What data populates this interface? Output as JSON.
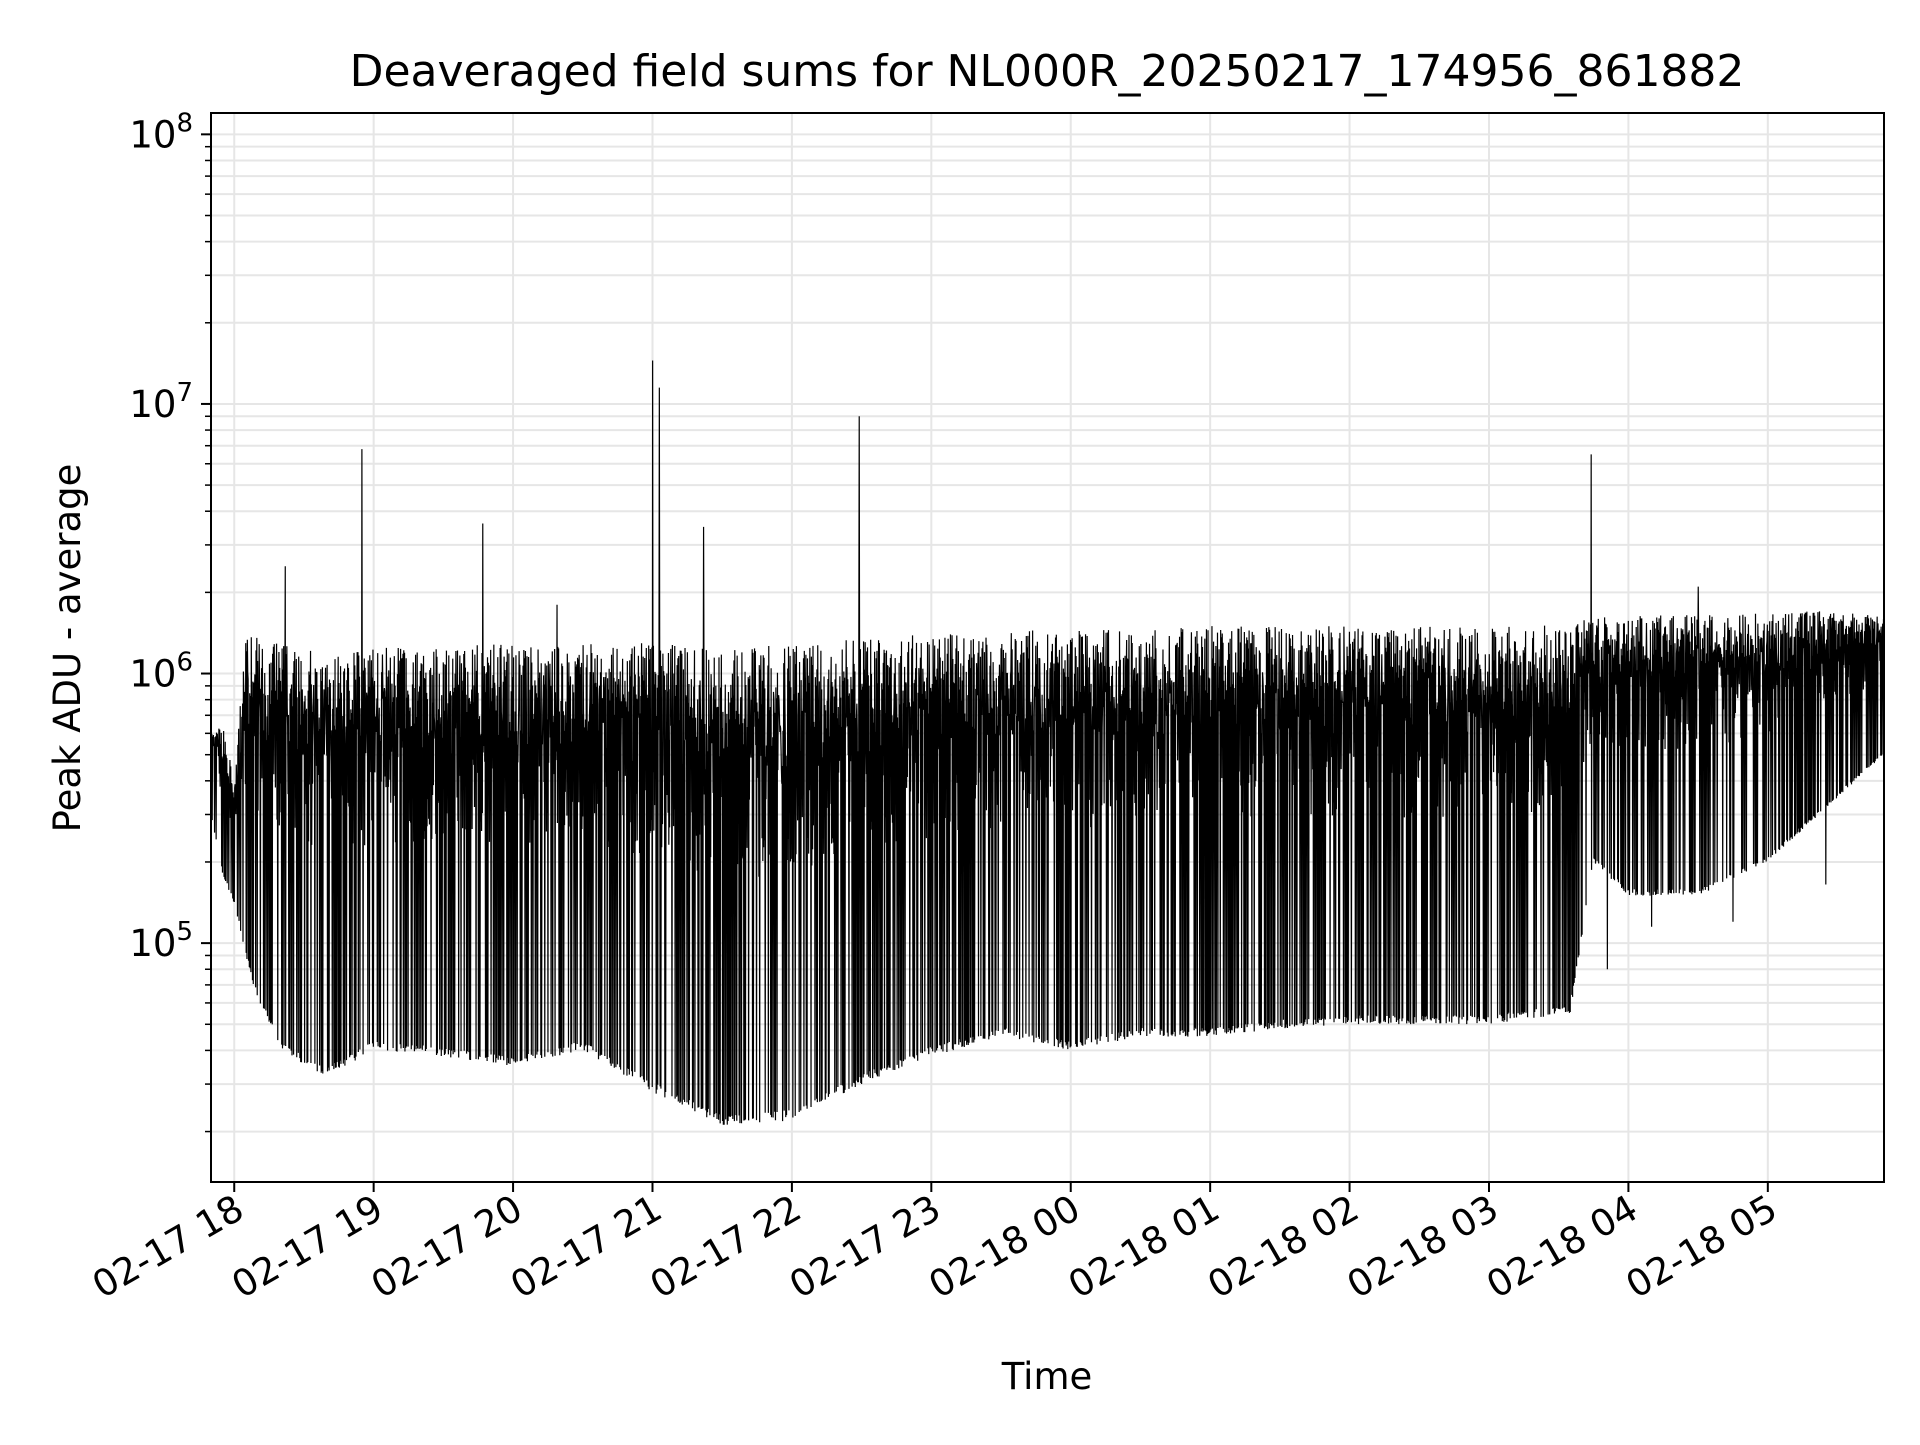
{
  "chart_data": {
    "type": "line",
    "title": "Deaveraged field sums for NL000R_20250217_174956_861882",
    "xlabel": "Time",
    "ylabel": "Peak ADU - average",
    "yscale": "log",
    "xlim": [
      "02-17 17:50",
      "02-18 05:50"
    ],
    "ylim": [
      13000,
      120000000
    ],
    "grid": true,
    "x_ticks": [
      {
        "time": "02-17 18:00",
        "label": "02-17 18"
      },
      {
        "time": "02-17 19:00",
        "label": "02-17 19"
      },
      {
        "time": "02-17 20:00",
        "label": "02-17 20"
      },
      {
        "time": "02-17 21:00",
        "label": "02-17 21"
      },
      {
        "time": "02-17 22:00",
        "label": "02-17 22"
      },
      {
        "time": "02-17 23:00",
        "label": "02-17 23"
      },
      {
        "time": "02-18 00:00",
        "label": "02-18 00"
      },
      {
        "time": "02-18 01:00",
        "label": "02-18 01"
      },
      {
        "time": "02-18 02:00",
        "label": "02-18 02"
      },
      {
        "time": "02-18 03:00",
        "label": "02-18 03"
      },
      {
        "time": "02-18 04:00",
        "label": "02-18 04"
      },
      {
        "time": "02-18 05:00",
        "label": "02-18 05"
      }
    ],
    "y_ticks": [
      {
        "value": 100000,
        "base": "10",
        "exp": "5"
      },
      {
        "value": 1000000,
        "base": "10",
        "exp": "6"
      },
      {
        "value": 10000000,
        "base": "10",
        "exp": "7"
      },
      {
        "value": 100000000,
        "base": "10",
        "exp": "8"
      }
    ],
    "line_color": "#000000",
    "grid_color": "#e6e6e6",
    "series": [
      {
        "envelope": [
          {
            "x": "02-17 17:50",
            "low": 300000,
            "high": 600000
          },
          {
            "x": "02-17 17:55",
            "low": 180000,
            "high": 650000
          },
          {
            "x": "02-17 18:00",
            "low": 140000,
            "high": 400000
          },
          {
            "x": "02-17 18:05",
            "low": 90000,
            "high": 1400000
          },
          {
            "x": "02-17 18:10",
            "low": 60000,
            "high": 1400000
          },
          {
            "x": "02-17 18:15",
            "low": 50000,
            "high": 1350000
          },
          {
            "x": "02-17 18:20",
            "low": 40000,
            "high": 1300000
          },
          {
            "x": "02-17 18:30",
            "low": 35000,
            "high": 1250000
          },
          {
            "x": "02-17 18:40",
            "low": 32000,
            "high": 1200000
          },
          {
            "x": "02-17 19:00",
            "low": 40000,
            "high": 1250000
          },
          {
            "x": "02-17 19:30",
            "low": 38000,
            "high": 1250000
          },
          {
            "x": "02-17 20:00",
            "low": 35000,
            "high": 1300000
          },
          {
            "x": "02-17 20:30",
            "low": 40000,
            "high": 1300000
          },
          {
            "x": "02-17 21:00",
            "low": 28000,
            "high": 1300000
          },
          {
            "x": "02-17 21:30",
            "low": 21000,
            "high": 1250000
          },
          {
            "x": "02-17 22:00",
            "low": 22000,
            "high": 1300000
          },
          {
            "x": "02-17 22:30",
            "low": 30000,
            "high": 1350000
          },
          {
            "x": "02-17 23:00",
            "low": 38000,
            "high": 1400000
          },
          {
            "x": "02-17 23:30",
            "low": 45000,
            "high": 1450000
          },
          {
            "x": "02-18 00:00",
            "low": 40000,
            "high": 1450000
          },
          {
            "x": "02-18 00:30",
            "low": 45000,
            "high": 1450000
          },
          {
            "x": "02-18 01:00",
            "low": 45000,
            "high": 1500000
          },
          {
            "x": "02-18 01:30",
            "low": 48000,
            "high": 1500000
          },
          {
            "x": "02-18 02:00",
            "low": 50000,
            "high": 1500000
          },
          {
            "x": "02-18 02:30",
            "low": 50000,
            "high": 1500000
          },
          {
            "x": "02-18 03:00",
            "low": 50000,
            "high": 1500000
          },
          {
            "x": "02-18 03:35",
            "low": 55000,
            "high": 1550000
          },
          {
            "x": "02-18 03:45",
            "low": 200000,
            "high": 1600000
          },
          {
            "x": "02-18 04:00",
            "low": 150000,
            "high": 1650000
          },
          {
            "x": "02-18 04:30",
            "low": 150000,
            "high": 1650000
          },
          {
            "x": "02-18 05:00",
            "low": 200000,
            "high": 1700000
          },
          {
            "x": "02-18 05:50",
            "low": 500000,
            "high": 1700000
          }
        ],
        "spikes": [
          {
            "x": "02-17 18:22",
            "value": 2500000
          },
          {
            "x": "02-17 18:55",
            "value": 6800000
          },
          {
            "x": "02-17 19:47",
            "value": 3600000
          },
          {
            "x": "02-17 20:19",
            "value": 1800000
          },
          {
            "x": "02-17 21:00",
            "value": 14500000
          },
          {
            "x": "02-17 21:03",
            "value": 11500000
          },
          {
            "x": "02-17 21:22",
            "value": 3500000
          },
          {
            "x": "02-17 22:29",
            "value": 9000000
          },
          {
            "x": "02-18 03:44",
            "value": 6500000
          },
          {
            "x": "02-18 04:30",
            "value": 2100000
          }
        ],
        "dips": [
          {
            "x": "02-18 03:51",
            "value": 80000
          },
          {
            "x": "02-18 04:10",
            "value": 115000
          },
          {
            "x": "02-18 04:45",
            "value": 120000
          },
          {
            "x": "02-18 05:25",
            "value": 165000
          }
        ]
      }
    ]
  }
}
